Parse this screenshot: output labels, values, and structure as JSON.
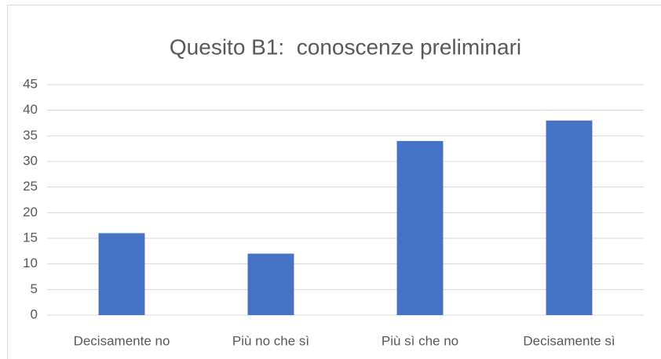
{
  "chart_data": {
    "type": "bar",
    "title": "Quesito B1:  conoscenze preliminari",
    "categories": [
      "Decisamente no",
      "Più no che sì",
      "Più sì che no",
      "Decisamente sì"
    ],
    "values": [
      16,
      12,
      34,
      38
    ],
    "color": "#4472c4",
    "ylim": [
      0,
      45
    ],
    "yticks": [
      0,
      5,
      10,
      15,
      20,
      25,
      30,
      35,
      40,
      45
    ],
    "grid": true
  }
}
